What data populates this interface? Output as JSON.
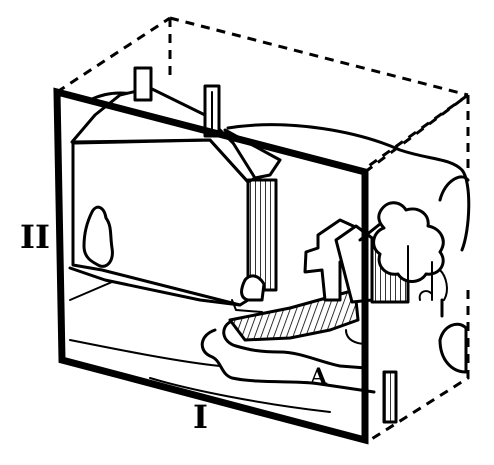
{
  "labels": {
    "roman_two": "II",
    "roman_one": "I",
    "region_a": "A"
  },
  "colors": {
    "ink": "#000000",
    "paper": "#ffffff"
  }
}
